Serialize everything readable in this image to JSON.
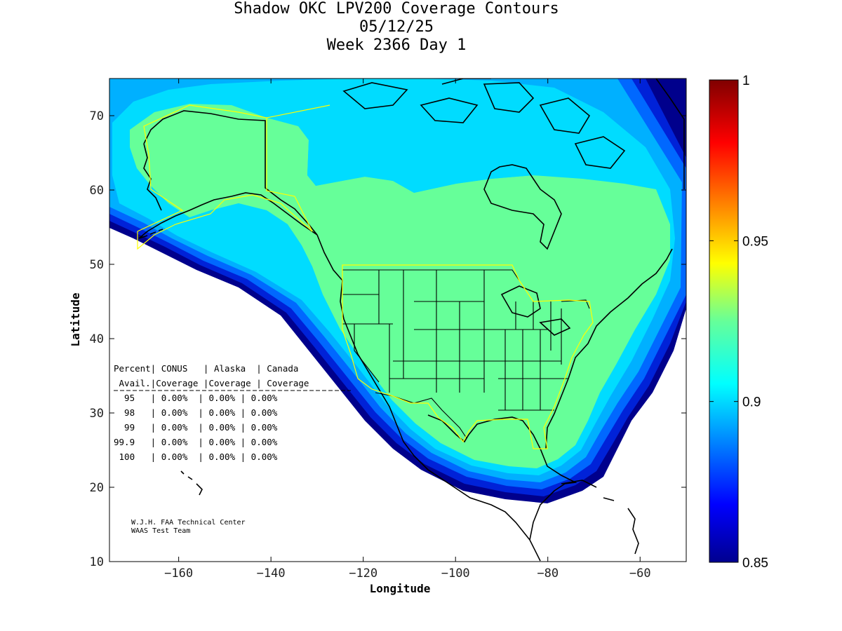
{
  "title": {
    "line1": "Shadow OKC LPV200 Coverage Contours",
    "line2": "05/12/25",
    "line3": "Week 2366 Day 1"
  },
  "axes": {
    "xlabel": "Longitude",
    "ylabel": "Latitude",
    "xlim": [
      -175,
      -50
    ],
    "ylim": [
      10,
      75
    ],
    "xticks": [
      -160,
      -140,
      -120,
      -100,
      -80,
      -60
    ],
    "yticks": [
      10,
      20,
      30,
      40,
      50,
      60,
      70
    ]
  },
  "colorbar": {
    "min": 0.85,
    "max": 1,
    "ticks": [
      "1",
      "0.95",
      "0.9",
      "0.85"
    ],
    "tick_values": [
      1,
      0.95,
      0.9,
      0.85
    ]
  },
  "coverage_table": {
    "header1": "Percent| CONUS   | Alaska  | Canada",
    "header2": " Avail.|Coverage |Coverage | Coverage",
    "rows": [
      "  95   | 0.00%  | 0.00% | 0.00%",
      "  98   | 0.00%  | 0.00% | 0.00%",
      "  99   | 0.00%  | 0.00% | 0.00%",
      "99.9   | 0.00%  | 0.00% | 0.00%",
      " 100   | 0.00%  | 0.00% | 0.00%"
    ]
  },
  "credit": {
    "line1": "W.J.H. FAA Technical Center",
    "line2": "WAAS Test Team"
  },
  "colors": {
    "level_092": "#66ff99",
    "level_090": "#00dcff",
    "level_089": "#00b4ff",
    "level_088": "#0070ff",
    "level_087": "#0030e0",
    "level_086": "#0000a0",
    "service_boundary": "#ffff00"
  }
}
